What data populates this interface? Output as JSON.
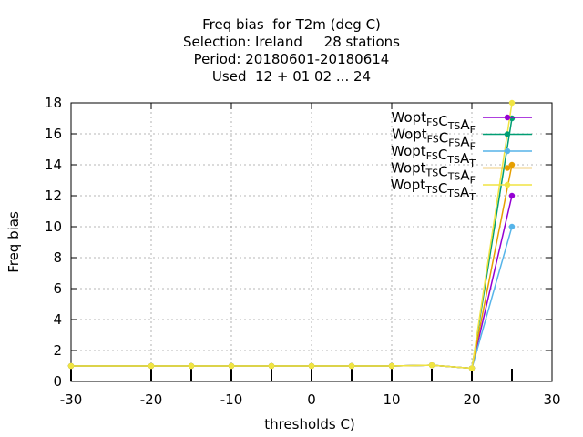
{
  "chart_data": {
    "type": "line",
    "title_lines": [
      "Freq bias  for T2m (deg C)",
      "Selection: Ireland     28 stations",
      "Period: 20180601-20180614",
      "Used  12 + 01 02 ... 24"
    ],
    "xlabel": "thresholds C)",
    "ylabel": "Freq bias",
    "xlim": [
      -30,
      30
    ],
    "ylim": [
      0,
      18
    ],
    "xticks": [
      -30,
      -20,
      -10,
      0,
      10,
      20,
      30
    ],
    "yticks": [
      0,
      2,
      4,
      6,
      8,
      10,
      12,
      14,
      16,
      18
    ],
    "grid": true,
    "legend_position": "top-right",
    "x": [
      -30,
      -20,
      -15,
      -10,
      -5,
      0,
      5,
      10,
      15,
      20,
      25
    ],
    "series": [
      {
        "name": "Wopt",
        "sub1": "FS",
        "mid": "C",
        "sub2": "TS",
        "a": "A",
        "sub3": "F",
        "color": "#9400d3",
        "values": [
          1.0,
          1.0,
          1.0,
          1.0,
          1.0,
          1.0,
          1.0,
          1.0,
          1.05,
          0.85,
          12.0
        ]
      },
      {
        "name": "Wopt",
        "sub1": "FS",
        "mid": "C",
        "sub2": "FS",
        "a": "A",
        "sub3": "F",
        "color": "#009e73",
        "values": [
          1.0,
          1.0,
          1.0,
          1.0,
          1.0,
          1.0,
          1.0,
          1.0,
          1.05,
          0.85,
          17.0
        ]
      },
      {
        "name": "Wopt",
        "sub1": "FS",
        "mid": "C",
        "sub2": "TS",
        "a": "A",
        "sub3": "T",
        "color": "#56b4e9",
        "values": [
          1.0,
          1.0,
          1.0,
          1.0,
          1.0,
          1.0,
          1.0,
          1.0,
          1.05,
          0.85,
          10.0
        ]
      },
      {
        "name": "Wopt",
        "sub1": "TS",
        "mid": "C",
        "sub2": "TS",
        "a": "A",
        "sub3": "F",
        "color": "#e69f00",
        "values": [
          1.0,
          1.0,
          1.0,
          1.0,
          1.0,
          1.0,
          1.0,
          1.0,
          1.05,
          0.85,
          14.0
        ]
      },
      {
        "name": "Wopt",
        "sub1": "TS",
        "mid": "C",
        "sub2": "TS",
        "a": "A",
        "sub3": "T",
        "color": "#f0e442",
        "values": [
          1.0,
          1.0,
          1.0,
          1.0,
          1.0,
          1.0,
          1.0,
          1.0,
          1.05,
          0.85,
          18.0
        ]
      }
    ]
  }
}
